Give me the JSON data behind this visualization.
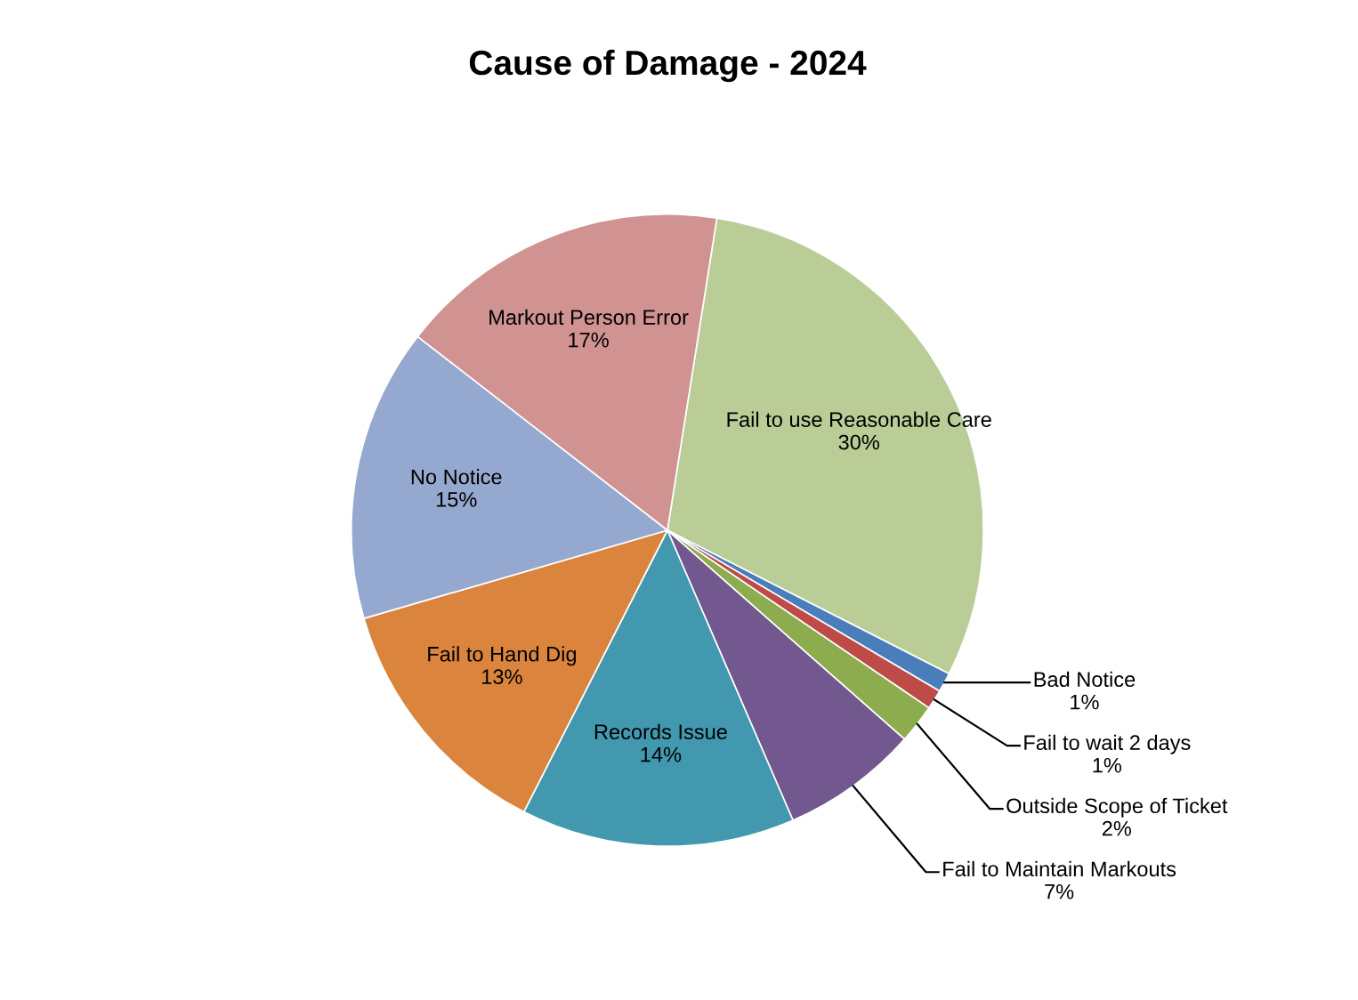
{
  "chart_data": {
    "type": "pie",
    "title": "Cause of Damage - 2024",
    "categories": [
      "Fail to use Reasonable Care",
      "Bad Notice",
      "Fail to wait 2 days",
      "Outside Scope of Ticket",
      "Fail to Maintain Markouts",
      "Records Issue",
      "Fail to Hand Dig",
      "No Notice",
      "Markout Person Error"
    ],
    "values": [
      30,
      1,
      1,
      2,
      7,
      14,
      13,
      15,
      17
    ],
    "value_labels": [
      "30%",
      "1%",
      "1%",
      "2%",
      "7%",
      "14%",
      "13%",
      "15%",
      "17%"
    ],
    "colors": [
      "#bacd96",
      "#4a7ebb",
      "#be4b48",
      "#8cac4e",
      "#72588f",
      "#4298af",
      "#db843d",
      "#95a8cf",
      "#d09392"
    ]
  }
}
